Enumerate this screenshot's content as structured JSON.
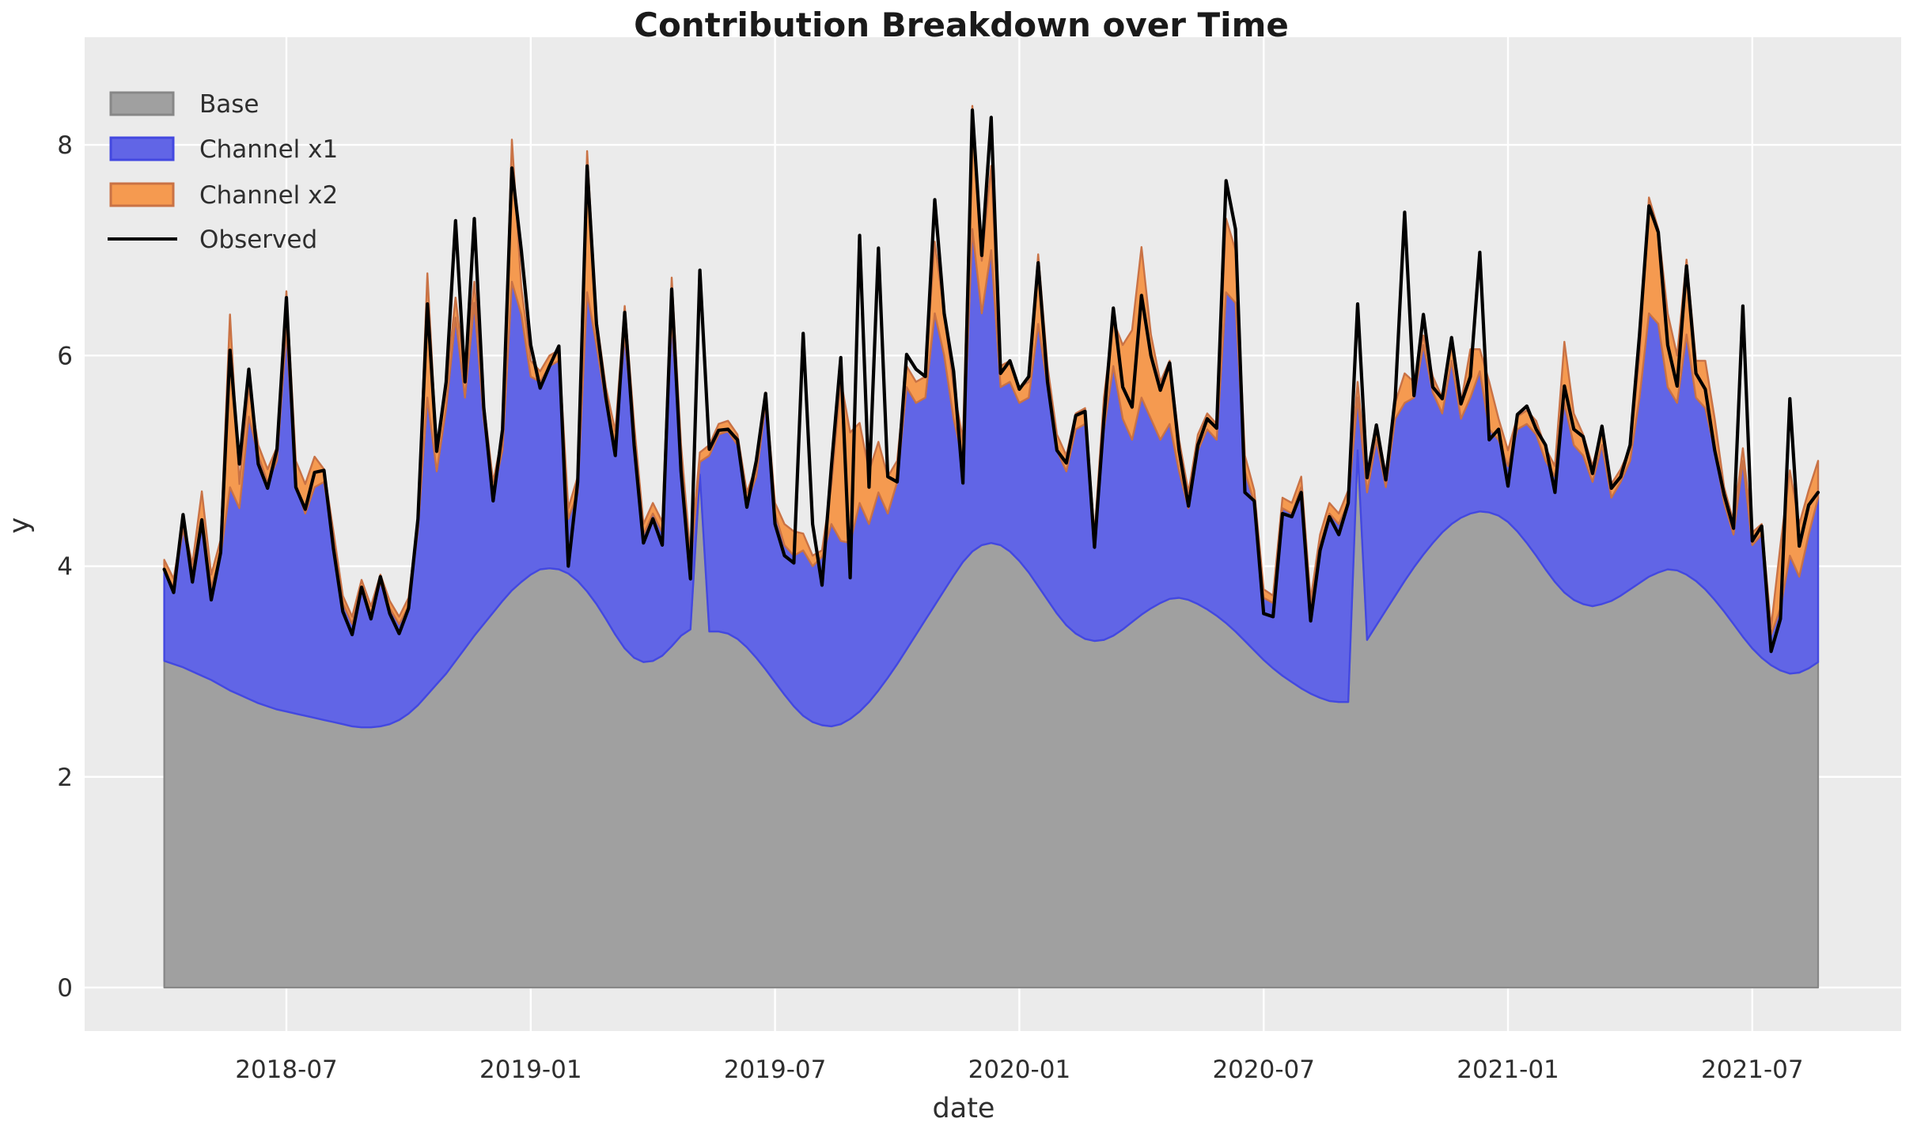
{
  "title": "Contribution Breakdown over Time",
  "axes": {
    "x_label": "date",
    "y_label": "y",
    "x_tick_labels": [
      "2018-07",
      "2019-01",
      "2019-07",
      "2020-01",
      "2020-07",
      "2021-01",
      "2021-07"
    ],
    "y_tick_labels": [
      "0",
      "2",
      "4",
      "6",
      "8"
    ],
    "y_tick_values": [
      0,
      2,
      4,
      6,
      8
    ]
  },
  "legend": [
    {
      "label": "Base",
      "type": "patch",
      "fill": "#a0a0a0",
      "edge": "#878787"
    },
    {
      "label": "Channel x1",
      "type": "patch",
      "fill": "#6165e6",
      "edge": "#4348e0"
    },
    {
      "label": "Channel x2",
      "type": "patch",
      "fill": "#f59a50",
      "edge": "#c97245"
    },
    {
      "label": "Observed",
      "type": "line",
      "stroke": "#000000"
    }
  ],
  "colors": {
    "figure_bg": "#ffffff",
    "plot_bg": "#ebebeb",
    "grid": "#ffffff",
    "base_fill": "#a0a0a0",
    "base_edge": "#878787",
    "x1_fill": "#6165e6",
    "x1_edge": "#4348e0",
    "x2_fill": "#f59a50",
    "x2_edge": "#c97245",
    "observed": "#000000",
    "text": "#2e2e2e"
  },
  "chart_data": {
    "type": "area",
    "stacked": true,
    "title": "Contribution Breakdown over Time",
    "xlabel": "date",
    "ylabel": "y",
    "x_unit": "weekly observations, week index 0 = 2018-04 start of series",
    "n_points": 177,
    "x_tick_positions_week_index": [
      13,
      39,
      65,
      91,
      117,
      143,
      169
    ],
    "x_tick_labels": [
      "2018-07",
      "2019-01",
      "2019-07",
      "2020-01",
      "2020-07",
      "2021-01",
      "2021-07"
    ],
    "yticks": [
      0,
      2,
      4,
      6,
      8
    ],
    "ylim": [
      -0.41,
      9.02
    ],
    "grid": true,
    "legend_position": "upper left",
    "series": [
      {
        "name": "Base",
        "render": "area",
        "values": [
          3.1,
          3.07,
          3.04,
          3.0,
          2.96,
          2.92,
          2.87,
          2.82,
          2.78,
          2.74,
          2.7,
          2.67,
          2.64,
          2.62,
          2.6,
          2.58,
          2.56,
          2.54,
          2.52,
          2.5,
          2.48,
          2.47,
          2.47,
          2.48,
          2.5,
          2.54,
          2.6,
          2.68,
          2.78,
          2.88,
          2.98,
          3.1,
          3.22,
          3.34,
          3.45,
          3.56,
          3.67,
          3.77,
          3.85,
          3.92,
          3.97,
          3.98,
          3.97,
          3.93,
          3.86,
          3.76,
          3.64,
          3.5,
          3.35,
          3.22,
          3.13,
          3.09,
          3.1,
          3.15,
          3.24,
          3.34,
          3.4,
          4.87,
          3.38,
          3.38,
          3.36,
          3.31,
          3.23,
          3.13,
          3.02,
          2.9,
          2.78,
          2.67,
          2.58,
          2.52,
          2.49,
          2.48,
          2.5,
          2.55,
          2.62,
          2.71,
          2.82,
          2.94,
          3.07,
          3.21,
          3.35,
          3.49,
          3.63,
          3.77,
          3.91,
          4.04,
          4.14,
          4.2,
          4.22,
          4.2,
          4.14,
          4.05,
          3.94,
          3.81,
          3.68,
          3.55,
          3.44,
          3.36,
          3.31,
          3.29,
          3.3,
          3.34,
          3.4,
          3.47,
          3.54,
          3.6,
          3.65,
          3.69,
          3.7,
          3.68,
          3.64,
          3.59,
          3.53,
          3.46,
          3.38,
          3.29,
          3.2,
          3.11,
          3.03,
          2.96,
          2.9,
          2.84,
          2.79,
          2.75,
          2.72,
          2.71,
          2.71,
          5.1,
          3.3,
          3.44,
          3.58,
          3.72,
          3.86,
          3.99,
          4.11,
          4.22,
          4.32,
          4.4,
          4.46,
          4.5,
          4.52,
          4.51,
          4.48,
          4.42,
          4.33,
          4.22,
          4.1,
          3.97,
          3.85,
          3.75,
          3.68,
          3.64,
          3.62,
          3.64,
          3.67,
          3.72,
          3.78,
          3.84,
          3.9,
          3.94,
          3.97,
          3.96,
          3.92,
          3.86,
          3.78,
          3.68,
          3.57,
          3.45,
          3.33,
          3.22,
          3.13,
          3.06,
          3.01,
          2.98,
          2.99,
          3.03,
          3.09
        ]
      },
      {
        "name": "Channel x1",
        "render": "area",
        "values": [
          0.85,
          0.73,
          1.31,
          0.95,
          1.44,
          0.88,
          1.23,
          1.93,
          1.77,
          2.68,
          2.35,
          2.13,
          2.36,
          3.62,
          2.18,
          1.92,
          2.19,
          2.26,
          1.73,
          1.15,
          0.97,
          1.33,
          1.08,
          1.37,
          1.1,
          0.91,
          1.02,
          1.67,
          2.82,
          2.02,
          2.52,
          3.26,
          2.38,
          3.16,
          1.95,
          1.14,
          1.43,
          2.93,
          2.54,
          1.88,
          1.78,
          1.92,
          1.98,
          0.52,
          0.84,
          2.84,
          2.46,
          2.05,
          1.8,
          2.98,
          2.07,
          1.21,
          1.4,
          1.17,
          3.11,
          1.66,
          0.6,
          0.12,
          1.67,
          1.87,
          1.92,
          1.84,
          1.37,
          1.72,
          2.53,
          1.6,
          1.42,
          1.43,
          1.57,
          1.48,
          1.6,
          1.92,
          1.74,
          1.67,
          1.98,
          1.69,
          1.88,
          1.56,
          1.73,
          2.49,
          2.2,
          2.11,
          2.77,
          2.23,
          1.49,
          0.96,
          3.06,
          2.2,
          2.78,
          1.5,
          1.61,
          1.5,
          1.66,
          2.49,
          2.02,
          1.55,
          1.46,
          1.94,
          2.04,
          0.91,
          2.0,
          2.56,
          2.0,
          1.73,
          2.06,
          1.8,
          1.55,
          1.66,
          1.2,
          0.87,
          1.46,
          1.71,
          1.67,
          3.14,
          3.12,
          1.61,
          1.4,
          0.59,
          0.62,
          1.59,
          1.6,
          1.91,
          0.81,
          1.45,
          1.78,
          1.69,
          1.89,
          0.5,
          1.4,
          1.76,
          1.17,
          1.68,
          1.69,
          1.61,
          1.99,
          1.43,
          1.13,
          1.55,
          0.94,
          1.1,
          1.33,
          0.79,
          0.72,
          0.53,
          0.97,
          1.13,
          1.15,
          1.03,
          1.0,
          1.8,
          1.47,
          1.41,
          1.18,
          1.51,
          0.98,
          1.08,
          1.22,
          1.76,
          2.5,
          2.36,
          1.73,
          1.59,
          2.28,
          1.74,
          1.72,
          1.42,
          1.03,
          0.85,
          1.67,
          0.98,
          1.17,
          0.29,
          0.59,
          1.12,
          0.91,
          1.27,
          1.56
        ]
      },
      {
        "name": "Channel x2",
        "render": "area",
        "values": [
          0.11,
          0.08,
          0.07,
          0.07,
          0.31,
          0.12,
          0.15,
          1.64,
          0.23,
          0.28,
          0.1,
          0.12,
          0.13,
          0.37,
          0.22,
          0.28,
          0.29,
          0.12,
          0.08,
          0.07,
          0.07,
          0.07,
          0.07,
          0.07,
          0.07,
          0.07,
          0.08,
          0.1,
          1.18,
          0.2,
          0.2,
          0.19,
          0.2,
          0.2,
          0.15,
          0.1,
          0.15,
          1.35,
          0.26,
          0.15,
          0.1,
          0.1,
          0.1,
          0.1,
          0.15,
          1.34,
          0.25,
          0.15,
          0.13,
          0.27,
          0.15,
          0.1,
          0.1,
          0.1,
          0.39,
          0.15,
          0.1,
          0.09,
          0.1,
          0.1,
          0.1,
          0.1,
          0.1,
          0.1,
          0.1,
          0.1,
          0.2,
          0.23,
          0.16,
          0.1,
          0.06,
          0.37,
          1.53,
          1.05,
          0.76,
          0.5,
          0.48,
          0.35,
          0.2,
          0.2,
          0.2,
          0.2,
          0.68,
          0.4,
          0.3,
          0.2,
          1.17,
          0.5,
          0.8,
          0.2,
          0.2,
          0.15,
          0.15,
          0.66,
          0.2,
          0.15,
          0.15,
          0.15,
          0.15,
          0.1,
          0.3,
          0.43,
          0.7,
          1.04,
          1.43,
          0.8,
          0.55,
          0.6,
          0.3,
          0.15,
          0.15,
          0.15,
          0.15,
          0.7,
          0.5,
          0.15,
          0.12,
          0.08,
          0.07,
          0.1,
          0.1,
          0.1,
          0.08,
          0.1,
          0.1,
          0.1,
          0.12,
          0.15,
          0.14,
          0.14,
          0.13,
          0.15,
          0.28,
          0.15,
          0.09,
          0.15,
          0.15,
          0.15,
          0.15,
          0.46,
          0.21,
          0.45,
          0.2,
          0.15,
          0.12,
          0.13,
          0.13,
          0.12,
          0.1,
          0.58,
          0.3,
          0.2,
          0.15,
          0.15,
          0.13,
          0.12,
          0.12,
          0.4,
          1.1,
          0.9,
          0.7,
          0.45,
          0.71,
          0.35,
          0.45,
          0.3,
          0.15,
          0.12,
          0.12,
          0.12,
          0.1,
          0.07,
          0.6,
          0.81,
          0.5,
          0.42,
          0.35
        ]
      },
      {
        "name": "Observed",
        "render": "line",
        "values": [
          3.97,
          3.75,
          4.49,
          3.85,
          4.44,
          3.68,
          4.13,
          6.05,
          4.97,
          5.87,
          4.97,
          4.74,
          5.11,
          6.55,
          4.75,
          4.54,
          4.89,
          4.91,
          4.17,
          3.57,
          3.35,
          3.8,
          3.5,
          3.9,
          3.55,
          3.36,
          3.6,
          4.45,
          6.49,
          5.09,
          5.75,
          7.28,
          5.75,
          7.3,
          5.51,
          4.62,
          5.3,
          7.78,
          7.0,
          6.1,
          5.69,
          5.9,
          6.09,
          4.0,
          4.8,
          7.8,
          6.3,
          5.6,
          5.05,
          6.41,
          5.15,
          4.22,
          4.45,
          4.2,
          6.63,
          4.9,
          3.88,
          6.81,
          5.11,
          5.29,
          5.3,
          5.2,
          4.56,
          5.0,
          5.64,
          4.4,
          4.1,
          4.03,
          6.21,
          4.4,
          3.82,
          4.95,
          5.98,
          3.89,
          7.14,
          4.75,
          7.02,
          4.85,
          4.8,
          6.01,
          5.87,
          5.8,
          7.48,
          6.4,
          5.85,
          4.79,
          8.33,
          6.95,
          8.26,
          5.83,
          5.95,
          5.68,
          5.8,
          6.88,
          5.75,
          5.1,
          4.98,
          5.43,
          5.47,
          4.18,
          5.4,
          6.45,
          5.7,
          5.51,
          6.57,
          6.0,
          5.67,
          5.93,
          5.1,
          4.57,
          5.15,
          5.4,
          5.31,
          7.66,
          7.2,
          4.7,
          4.62,
          3.55,
          3.52,
          4.5,
          4.47,
          4.7,
          3.48,
          4.15,
          4.47,
          4.3,
          4.6,
          6.49,
          4.84,
          5.34,
          4.82,
          5.6,
          7.36,
          5.62,
          6.39,
          5.7,
          5.59,
          6.17,
          5.54,
          5.8,
          6.98,
          5.2,
          5.3,
          4.76,
          5.44,
          5.52,
          5.3,
          5.15,
          4.7,
          5.71,
          5.3,
          5.23,
          4.88,
          5.33,
          4.74,
          4.85,
          5.15,
          6.2,
          7.42,
          7.17,
          6.1,
          5.71,
          6.85,
          5.83,
          5.68,
          5.1,
          4.68,
          4.36,
          6.47,
          4.24,
          4.38,
          3.19,
          3.5,
          5.59,
          4.19,
          4.58,
          4.7
        ]
      }
    ]
  }
}
